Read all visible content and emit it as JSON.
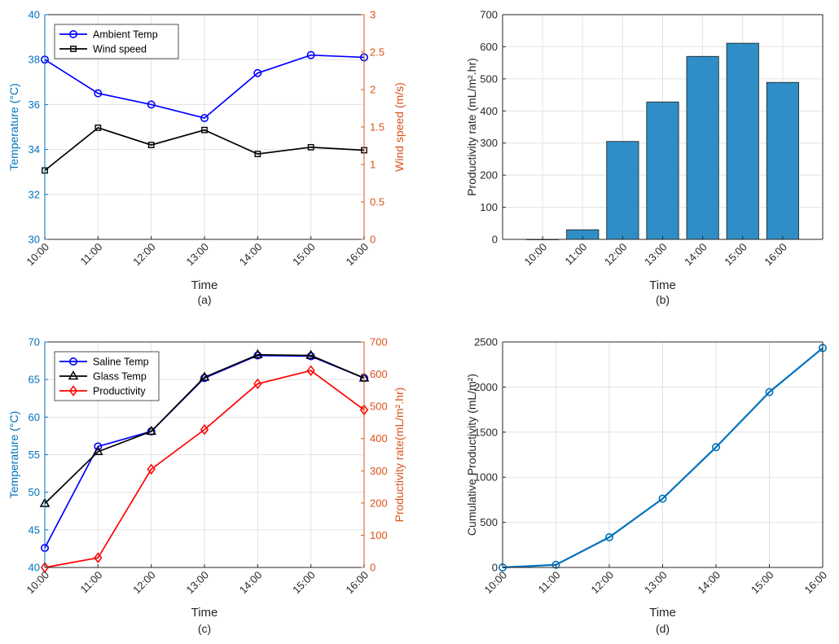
{
  "colors": {
    "blue": "#0000ff",
    "black": "#000000",
    "red": "#ff0000",
    "left_axis": "#0072bd",
    "right_axis": "#d95319",
    "bar_fill": "#2e8ec5",
    "line_blue": "#0072bd",
    "grid": "#e2e2e2"
  },
  "chart_data": [
    {
      "id": "a",
      "type": "line",
      "caption": "(a)",
      "xlabel": "Time",
      "ylabel_left": "Temperature (°C)",
      "ylabel_right": "Wind speed (m/s)",
      "categories": [
        "10:00",
        "11:00",
        "12:00",
        "13:00",
        "14:00",
        "15:00",
        "16:00"
      ],
      "ylim_left": [
        30,
        40
      ],
      "yticks_left": [
        30,
        32,
        34,
        36,
        38,
        40
      ],
      "ylim_right": [
        0,
        3
      ],
      "yticks_right": [
        "0",
        "0.5",
        "1",
        "1.5",
        "2",
        "2.5",
        "3"
      ],
      "grid": true,
      "legend_position": "top-left",
      "series": [
        {
          "name": "Ambient Temp",
          "axis": "left",
          "marker": "circle",
          "color": "blue",
          "values": [
            38.0,
            36.5,
            36.0,
            35.4,
            37.4,
            38.2,
            38.1
          ]
        },
        {
          "name": "Wind speed",
          "axis": "right",
          "marker": "square",
          "color": "black",
          "values": [
            0.92,
            1.49,
            1.26,
            1.46,
            1.14,
            1.23,
            1.19
          ]
        }
      ]
    },
    {
      "id": "b",
      "type": "bar",
      "caption": "(b)",
      "xlabel": "Time",
      "ylabel": "Productivity rate (mL/m².hr)",
      "categories": [
        "10:00",
        "11:00",
        "12:00",
        "13:00",
        "14:00",
        "15:00",
        "16:00"
      ],
      "values": [
        0,
        30,
        305,
        428,
        570,
        611,
        489
      ],
      "ylim": [
        0,
        700
      ],
      "yticks": [
        0,
        100,
        200,
        300,
        400,
        500,
        600,
        700
      ],
      "grid": true
    },
    {
      "id": "c",
      "type": "line",
      "caption": "(c)",
      "xlabel": "Time",
      "ylabel_left": "Temperature (°C)",
      "ylabel_right": "Productivity rate(mL/m².hr)",
      "categories": [
        "10:00",
        "11:00",
        "12:00",
        "13:00",
        "14:00",
        "15:00",
        "16:00"
      ],
      "ylim_left": [
        40,
        70
      ],
      "yticks_left": [
        40,
        45,
        50,
        55,
        60,
        65,
        70
      ],
      "ylim_right": [
        0,
        700
      ],
      "yticks_right": [
        0,
        100,
        200,
        300,
        400,
        500,
        600,
        700
      ],
      "grid": true,
      "legend_position": "top-left",
      "series": [
        {
          "name": "Saline Temp",
          "axis": "left",
          "marker": "circle",
          "color": "blue",
          "values": [
            42.6,
            56.1,
            58.1,
            65.2,
            68.2,
            68.1,
            65.2
          ]
        },
        {
          "name": "Glass Temp",
          "axis": "left",
          "marker": "triangle",
          "color": "black",
          "values": [
            48.5,
            55.4,
            58.1,
            65.3,
            68.3,
            68.2,
            65.2
          ]
        },
        {
          "name": "Productivity",
          "axis": "right",
          "marker": "diamond",
          "color": "red",
          "values": [
            0,
            30,
            305,
            428,
            570,
            611,
            489
          ]
        }
      ]
    },
    {
      "id": "d",
      "type": "line",
      "caption": "(d)",
      "xlabel": "Time",
      "ylabel": "Cumulative Productivity (mL/m²)",
      "categories": [
        "10:00",
        "11:00",
        "12:00",
        "13:00",
        "14:00",
        "15:00",
        "16:00"
      ],
      "ylim": [
        0,
        2500
      ],
      "yticks": [
        0,
        500,
        1000,
        1500,
        2000,
        2500
      ],
      "grid": true,
      "series": [
        {
          "marker": "circle",
          "color": "line_blue",
          "values": [
            0,
            30,
            335,
            763,
            1333,
            1944,
            2433
          ]
        }
      ]
    }
  ]
}
